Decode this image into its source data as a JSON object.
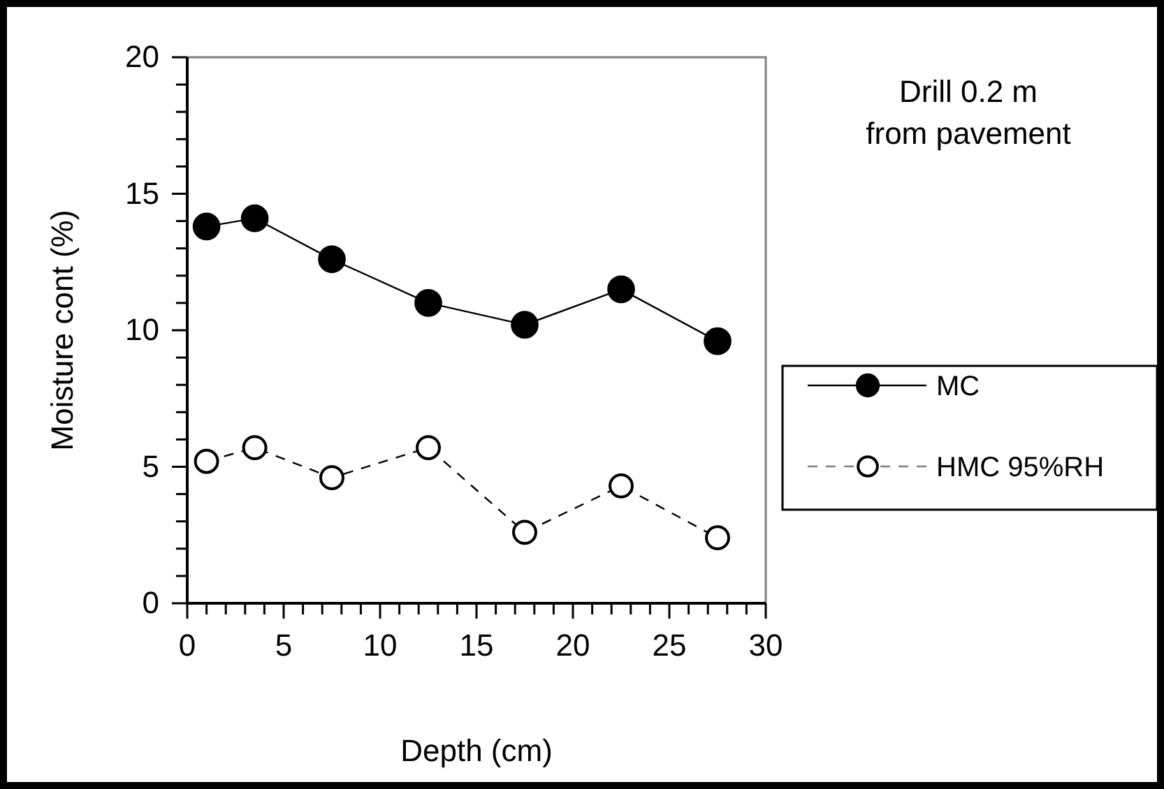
{
  "chart_data": {
    "type": "line",
    "xlabel": "Depth (cm)",
    "ylabel": "Moisture cont (%)",
    "x": [
      1,
      3.5,
      7.5,
      12.5,
      17.5,
      22.5,
      27.5
    ],
    "series": [
      {
        "name": "MC",
        "color": "#000000",
        "line_style": "solid",
        "values": [
          13.8,
          14.1,
          12.6,
          11.0,
          10.2,
          11.5,
          9.6
        ]
      },
      {
        "name": "HMC 95%RH",
        "color": "#000000",
        "line_style": "dashed",
        "values": [
          5.2,
          5.7,
          4.6,
          5.7,
          2.6,
          4.3,
          2.4
        ]
      }
    ],
    "xlim": [
      0,
      30
    ],
    "ylim": [
      0,
      20
    ],
    "xticks": [
      0,
      {
        "value": 1,
        "label": null
      },
      {
        "value": 2,
        "label": null
      },
      {
        "value": 3,
        "label": null
      },
      {
        "value": 4,
        "label": null
      },
      5,
      {
        "value": 6,
        "label": null
      },
      {
        "value": 7,
        "label": null
      },
      {
        "value": 8,
        "label": null
      },
      {
        "value": 9,
        "label": null
      },
      10,
      {
        "value": 11,
        "label": null
      },
      {
        "value": 12,
        "label": null
      },
      {
        "value": 13,
        "label": null
      },
      {
        "value": 14,
        "label": null
      },
      15,
      {
        "value": 16,
        "label": null
      },
      {
        "value": 17,
        "label": null
      },
      {
        "value": 18,
        "label": null
      },
      {
        "value": 19,
        "label": null
      },
      20,
      {
        "value": 21,
        "label": null
      },
      {
        "value": 22,
        "label": null
      },
      {
        "value": 23,
        "label": null
      },
      {
        "value": 24,
        "label": null
      },
      25,
      {
        "value": 26,
        "label": null
      },
      {
        "value": 27,
        "label": null
      },
      {
        "value": 28,
        "label": null
      },
      {
        "value": 29,
        "label": null
      },
      30
    ],
    "yticks": [
      0,
      {
        "value": 1,
        "label": null
      },
      {
        "value": 2,
        "label": null
      },
      {
        "value": 3,
        "label": null
      },
      {
        "value": 4,
        "label": null
      },
      5,
      {
        "value": 6,
        "label": null
      },
      {
        "value": 7,
        "label": null
      },
      {
        "value": 8,
        "label": null
      },
      {
        "value": 9,
        "label": null
      },
      10,
      {
        "value": 11,
        "label": null
      },
      {
        "value": 12,
        "label": null
      },
      {
        "value": 13,
        "label": null
      },
      {
        "value": 14,
        "label": null
      },
      15,
      {
        "value": 16,
        "label": null
      },
      {
        "value": 17,
        "label": null
      },
      {
        "value": 18,
        "label": null
      },
      {
        "value": 19,
        "label": null
      },
      20
    ],
    "marker": "circle",
    "legend": "right",
    "grid": false,
    "annotations": [
      "Drill 0.2 m\nfrom pavement"
    ]
  }
}
